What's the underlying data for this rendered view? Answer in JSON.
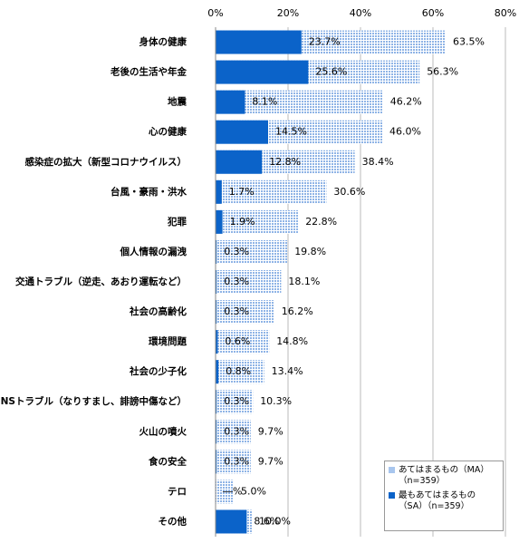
{
  "chart_data": {
    "type": "hbar-overlap",
    "categories": [
      "身体の健康",
      "老後の生活や年金",
      "地震",
      "心の健康",
      "感染症の拡大（新型コロナウイルス）",
      "台風・豪雨・洪水",
      "犯罪",
      "個人情報の漏洩",
      "交通トラブル（逆走、あおり運転など）",
      "社会の高齢化",
      "環境問題",
      "社会の少子化",
      "SNSトラブル（なりすまし、誹謗中傷など）",
      "火山の噴火",
      "食の安全",
      "テロ",
      "その他"
    ],
    "series": [
      {
        "name": "あてはまるもの（MA）（n=359）",
        "color": "#a8c6ee",
        "values": [
          63.5,
          56.3,
          46.2,
          46.0,
          38.4,
          30.6,
          22.8,
          19.8,
          18.1,
          16.2,
          14.8,
          13.4,
          10.3,
          9.7,
          9.7,
          5.0,
          10.0
        ],
        "value_labels": [
          "63.5%",
          "56.3%",
          "46.2%",
          "46.0%",
          "38.4%",
          "30.6%",
          "22.8%",
          "19.8%",
          "18.1%",
          "16.2%",
          "14.8%",
          "13.4%",
          "10.3%",
          "9.7%",
          "9.7%",
          "5.0%",
          "10.0%"
        ]
      },
      {
        "name": "最もあてはまるもの（SA）（n=359）",
        "color": "#0b63c9",
        "values": [
          23.7,
          25.6,
          8.1,
          14.5,
          12.8,
          1.7,
          1.9,
          0.3,
          0.3,
          0.3,
          0.6,
          0.8,
          0.3,
          0.3,
          0.3,
          null,
          8.6
        ],
        "value_labels": [
          "23.7%",
          "25.6%",
          "8.1%",
          "14.5%",
          "12.8%",
          "1.7%",
          "1.9%",
          "0.3%",
          "0.3%",
          "0.3%",
          "0.6%",
          "0.8%",
          "0.3%",
          "0.3%",
          "0.3%",
          "―%",
          "8.6%"
        ]
      }
    ],
    "xlim": [
      0,
      80
    ],
    "xticks": [
      {
        "value": 0,
        "label": "0%"
      },
      {
        "value": 20,
        "label": "20%"
      },
      {
        "value": 40,
        "label": "40%"
      },
      {
        "value": 60,
        "label": "60%"
      },
      {
        "value": 80,
        "label": "80%"
      }
    ],
    "grid": true
  }
}
